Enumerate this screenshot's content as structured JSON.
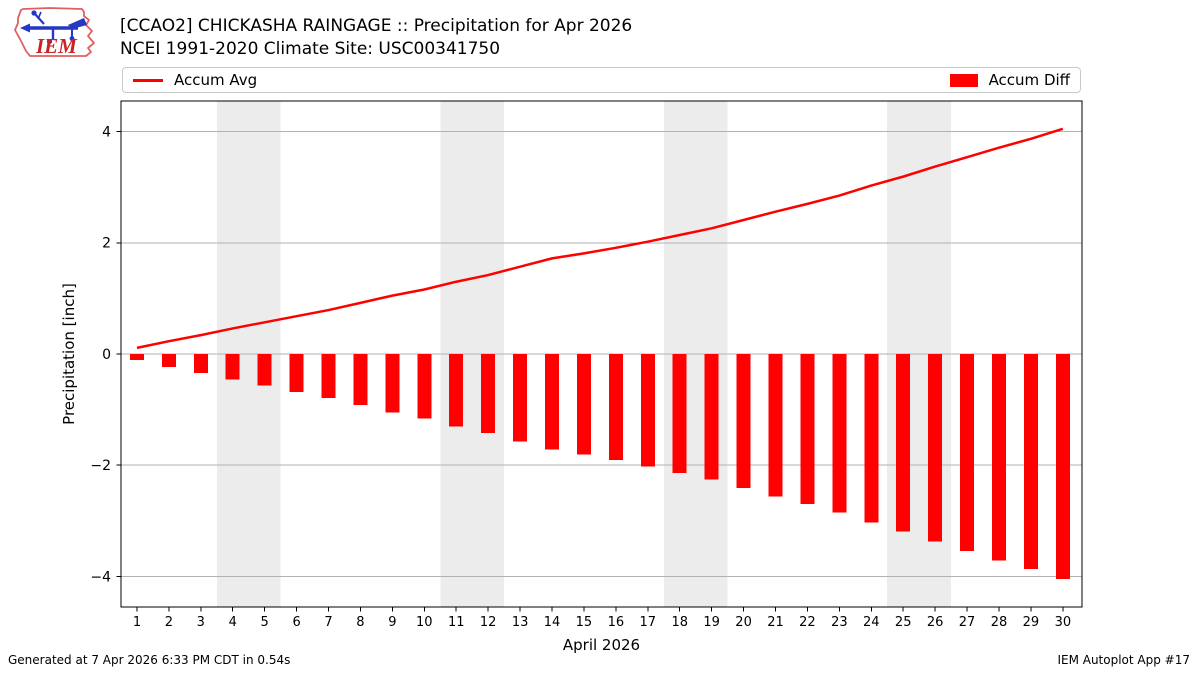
{
  "header": {
    "title_line1": "[CCAO2] CHICKASHA RAINGAGE :: Precipitation for Apr 2026",
    "title_line2": "NCEI 1991-2020 Climate Site: USC00341750",
    "logo_text": "IEM"
  },
  "legend": {
    "avg_label": "Accum Avg",
    "diff_label": "Accum Diff"
  },
  "chart_data": {
    "type": "bar",
    "title": "[CCAO2] CHICKASHA RAINGAGE :: Precipitation for Apr 2026",
    "subtitle": "NCEI 1991-2020 Climate Site: USC00341750",
    "xlabel": "April 2026",
    "ylabel": "Precipitation [inch]",
    "x": [
      1,
      2,
      3,
      4,
      5,
      6,
      7,
      8,
      9,
      10,
      11,
      12,
      13,
      14,
      15,
      16,
      17,
      18,
      19,
      20,
      21,
      22,
      23,
      24,
      25,
      26,
      27,
      28,
      29,
      30
    ],
    "series": [
      {
        "name": "Accum Avg",
        "type": "line",
        "color": "#ff0000",
        "values": [
          0.11,
          0.23,
          0.34,
          0.46,
          0.57,
          0.68,
          0.79,
          0.92,
          1.05,
          1.16,
          1.3,
          1.42,
          1.57,
          1.72,
          1.81,
          1.91,
          2.02,
          2.14,
          2.26,
          2.41,
          2.56,
          2.7,
          2.85,
          3.03,
          3.19,
          3.37,
          3.54,
          3.71,
          3.87,
          4.05
        ]
      },
      {
        "name": "Accum Diff",
        "type": "bar",
        "color": "#ff0000",
        "values": [
          -0.11,
          -0.23,
          -0.34,
          -0.46,
          -0.57,
          -0.68,
          -0.79,
          -0.92,
          -1.05,
          -1.16,
          -1.3,
          -1.42,
          -1.57,
          -1.72,
          -1.81,
          -1.91,
          -2.02,
          -2.14,
          -2.26,
          -2.41,
          -2.56,
          -2.7,
          -2.85,
          -3.03,
          -3.19,
          -3.37,
          -3.54,
          -3.71,
          -3.87,
          -4.05
        ]
      }
    ],
    "yticks": [
      4,
      2,
      0,
      -2,
      -4
    ],
    "ylim": [
      -4.55,
      4.55
    ],
    "xlim": [
      0.5,
      30.6
    ],
    "grid": true,
    "grid_color": "#b2b2b2",
    "weekend_bands": [
      [
        3.5,
        5.5
      ],
      [
        10.5,
        12.5
      ],
      [
        17.5,
        19.5
      ],
      [
        24.5,
        26.5
      ]
    ],
    "band_color": "#ececec",
    "legend_position": "top"
  },
  "footer": {
    "left": "Generated at 7 Apr 2026 6:33 PM CDT in 0.54s",
    "right": "IEM Autoplot App #17"
  }
}
